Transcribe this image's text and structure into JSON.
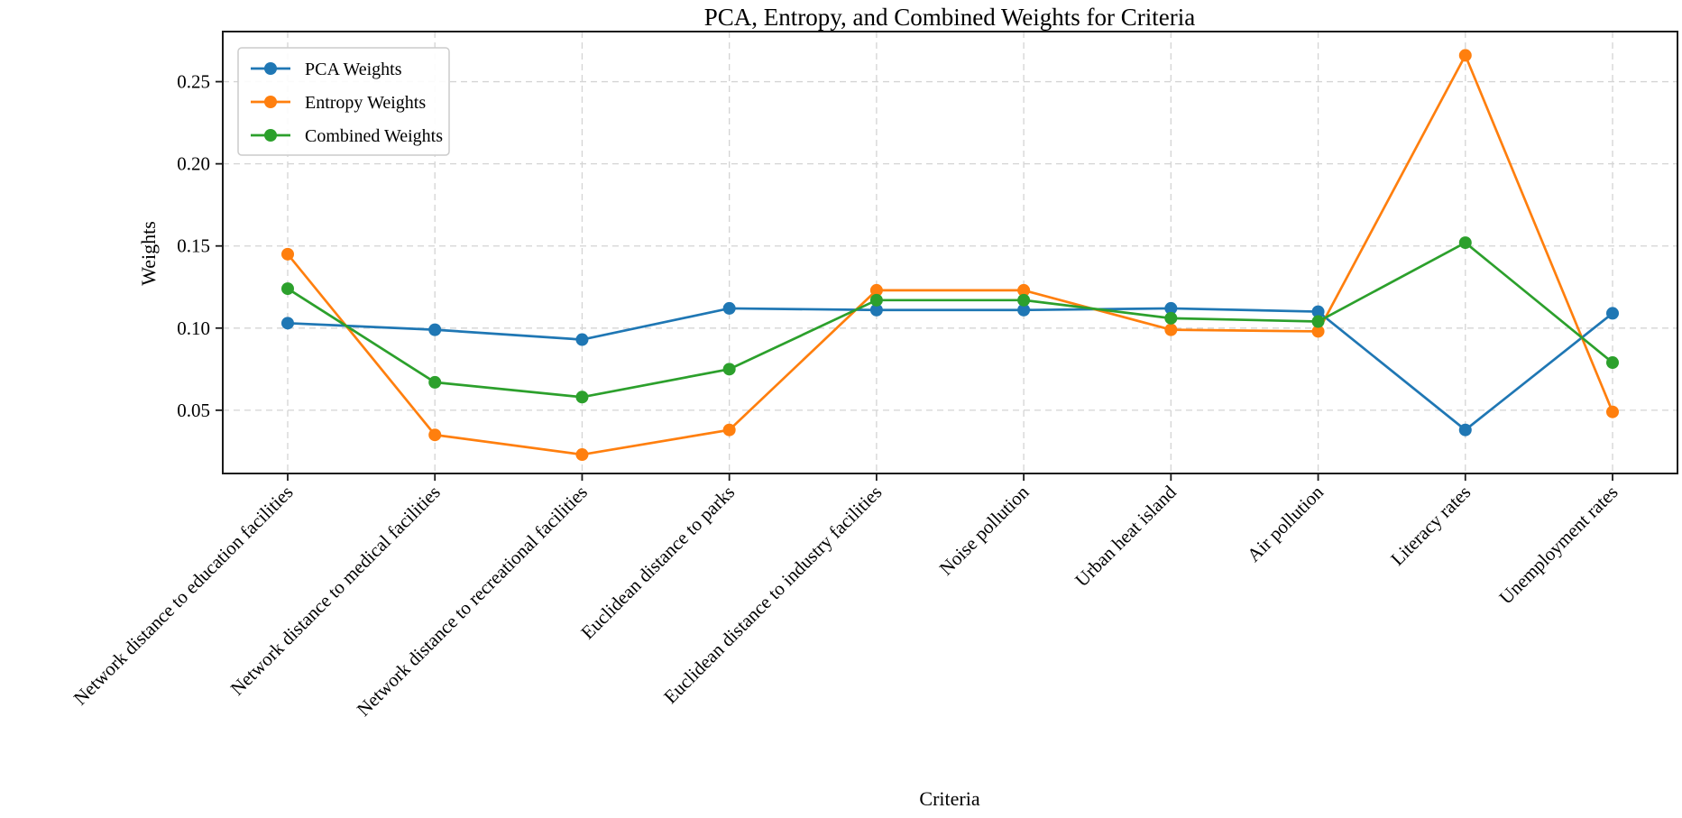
{
  "chart_data": {
    "type": "line",
    "title": "PCA, Entropy, and Combined Weights for Criteria",
    "xlabel": "Criteria",
    "ylabel": "Weights",
    "categories": [
      "Network distance to education facilities",
      "Network distance to medical facilities",
      "Network distance to recreational facilities",
      "Euclidean distance to parks",
      "Euclidean distance to industry facilities",
      "Noise pollution",
      "Urban heat island",
      "Air pollution",
      "Literacy rates",
      "Unemployment rates"
    ],
    "series": [
      {
        "name": "PCA Weights",
        "color": "#1f77b4",
        "marker": "circle",
        "values": [
          0.103,
          0.099,
          0.093,
          0.112,
          0.111,
          0.111,
          0.112,
          0.11,
          0.038,
          0.109
        ]
      },
      {
        "name": "Entropy Weights",
        "color": "#ff7f0e",
        "marker": "circle",
        "values": [
          0.145,
          0.035,
          0.023,
          0.038,
          0.123,
          0.123,
          0.099,
          0.098,
          0.266,
          0.049
        ]
      },
      {
        "name": "Combined Weights",
        "color": "#2ca02c",
        "marker": "circle",
        "values": [
          0.124,
          0.067,
          0.058,
          0.075,
          0.117,
          0.117,
          0.106,
          0.104,
          0.152,
          0.079
        ]
      }
    ],
    "ylim": [
      0.0115,
      0.2805
    ],
    "yticks": [
      0.05,
      0.1,
      0.15,
      0.2,
      0.25
    ],
    "ytick_labels": [
      "0.05",
      "0.10",
      "0.15",
      "0.20",
      "0.25"
    ],
    "xtick_rotation_deg": 45,
    "grid": true,
    "grid_style": "dashed",
    "legend_position": "upper left",
    "axis_color": "#1a1a1a",
    "grid_color": "#d4d4d4"
  }
}
